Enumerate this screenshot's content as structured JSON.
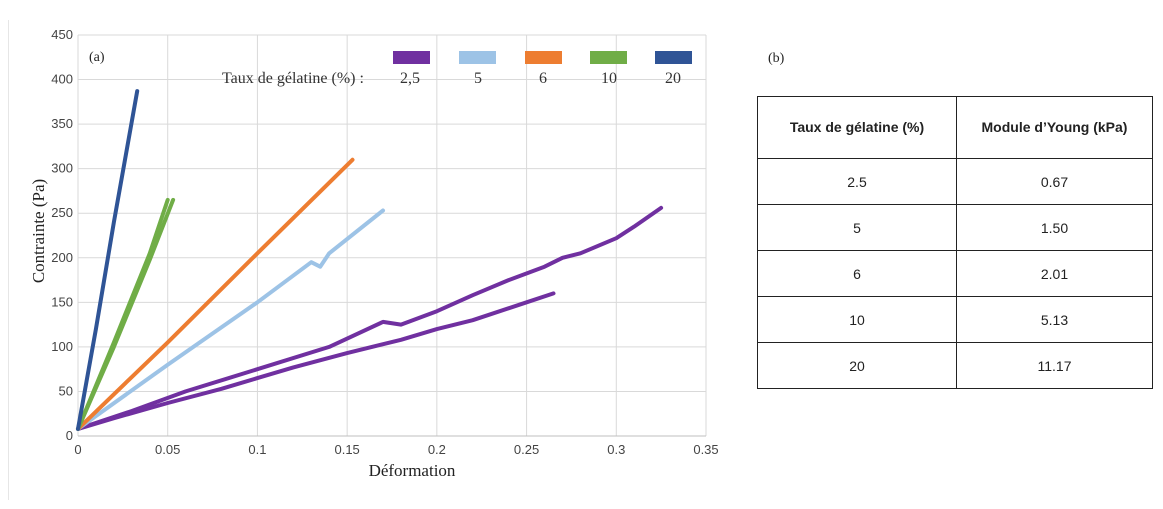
{
  "chart_data": {
    "type": "line",
    "panel_label": "(a)",
    "xlabel": "Déformation",
    "ylabel": "Contrainte (Pa)",
    "xlim": [
      0,
      0.35
    ],
    "ylim": [
      0,
      450
    ],
    "x_ticks": [
      "0",
      "0.05",
      "0.1",
      "0.15",
      "0.2",
      "0.25",
      "0.3",
      "0.35"
    ],
    "y_ticks": [
      "0",
      "50",
      "100",
      "150",
      "200",
      "250",
      "300",
      "350",
      "400",
      "450"
    ],
    "grid": true,
    "legend_position": "top-right",
    "legend_title": "Taux de gélatine (%) :",
    "series": [
      {
        "name": "2,5",
        "color": "#7030a0",
        "x": [
          0,
          0.02,
          0.05,
          0.08,
          0.1,
          0.12,
          0.15,
          0.18,
          0.2,
          0.22,
          0.25,
          0.265
        ],
        "y": [
          8,
          20,
          37,
          53,
          65,
          77,
          93,
          108,
          120,
          130,
          150,
          160
        ]
      },
      {
        "name": "2,5",
        "color": "#7030a0",
        "x": [
          0,
          0.03,
          0.06,
          0.1,
          0.14,
          0.17,
          0.18,
          0.2,
          0.22,
          0.24,
          0.26,
          0.27,
          0.28,
          0.3,
          0.31,
          0.325
        ],
        "y": [
          8,
          28,
          50,
          75,
          100,
          128,
          125,
          140,
          158,
          175,
          190,
          200,
          205,
          222,
          235,
          256
        ]
      },
      {
        "name": "5",
        "color": "#9dc3e6",
        "x": [
          0,
          0.05,
          0.1,
          0.13,
          0.135,
          0.14,
          0.17
        ],
        "y": [
          8,
          80,
          150,
          195,
          190,
          205,
          253
        ]
      },
      {
        "name": "6",
        "color": "#ed7d31",
        "x": [
          0,
          0.05,
          0.1,
          0.153
        ],
        "y": [
          8,
          105,
          205,
          310
        ]
      },
      {
        "name": "10",
        "color": "#70ad47",
        "x": [
          0,
          0.02,
          0.04,
          0.05
        ],
        "y": [
          8,
          105,
          205,
          265
        ]
      },
      {
        "name": "10",
        "color": "#70ad47",
        "x": [
          0,
          0.02,
          0.04,
          0.053
        ],
        "y": [
          8,
          100,
          198,
          265
        ]
      },
      {
        "name": "20",
        "color": "#2f5496",
        "x": [
          0,
          0.01,
          0.02,
          0.033
        ],
        "y": [
          8,
          120,
          240,
          387
        ]
      }
    ]
  },
  "table": {
    "label": "(b)",
    "headers": [
      "Taux de gélatine (%)",
      "Module d’Young (kPa)"
    ],
    "rows": [
      [
        "2.5",
        "0.67"
      ],
      [
        "5",
        "1.50"
      ],
      [
        "6",
        "2.01"
      ],
      [
        "10",
        "5.13"
      ],
      [
        "20",
        "11.17"
      ]
    ]
  }
}
